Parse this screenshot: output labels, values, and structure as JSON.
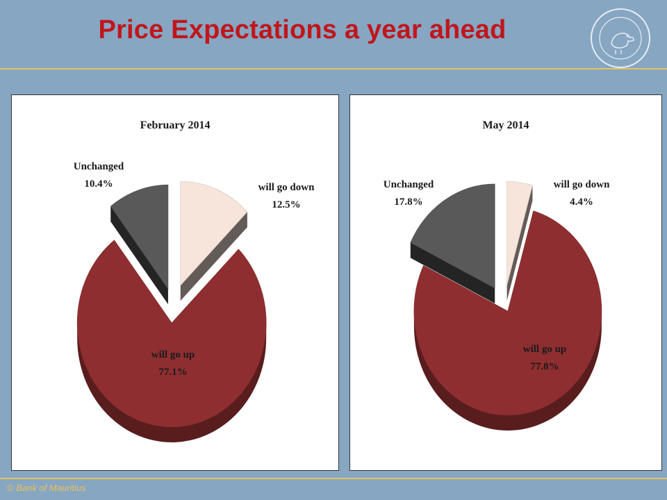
{
  "header": {
    "title": "Price Expectations a year ahead"
  },
  "footer": {
    "copyright": "© Bank of Mauritius"
  },
  "colors": {
    "background": "#87a6c2",
    "title": "#c0161c",
    "rule": "#e8c35a",
    "will_go_up": "#8f2e30",
    "unchanged": "#595959",
    "will_go_down": "#f7e4da"
  },
  "chart_data": [
    {
      "type": "pie",
      "title": "February 2014",
      "slices": [
        {
          "label": "will go down",
          "value": 12.5,
          "value_text": "12.5%"
        },
        {
          "label": "will go up",
          "value": 77.1,
          "value_text": "77.1%"
        },
        {
          "label": "Unchanged",
          "value": 10.4,
          "value_text": "10.4%"
        }
      ]
    },
    {
      "type": "pie",
      "title": "May 2014",
      "slices": [
        {
          "label": "will go down",
          "value": 4.4,
          "value_text": "4.4%"
        },
        {
          "label": "will go up",
          "value": 77.8,
          "value_text": "77.8%"
        },
        {
          "label": "Unchanged",
          "value": 17.8,
          "value_text": "17.8%"
        }
      ]
    }
  ]
}
